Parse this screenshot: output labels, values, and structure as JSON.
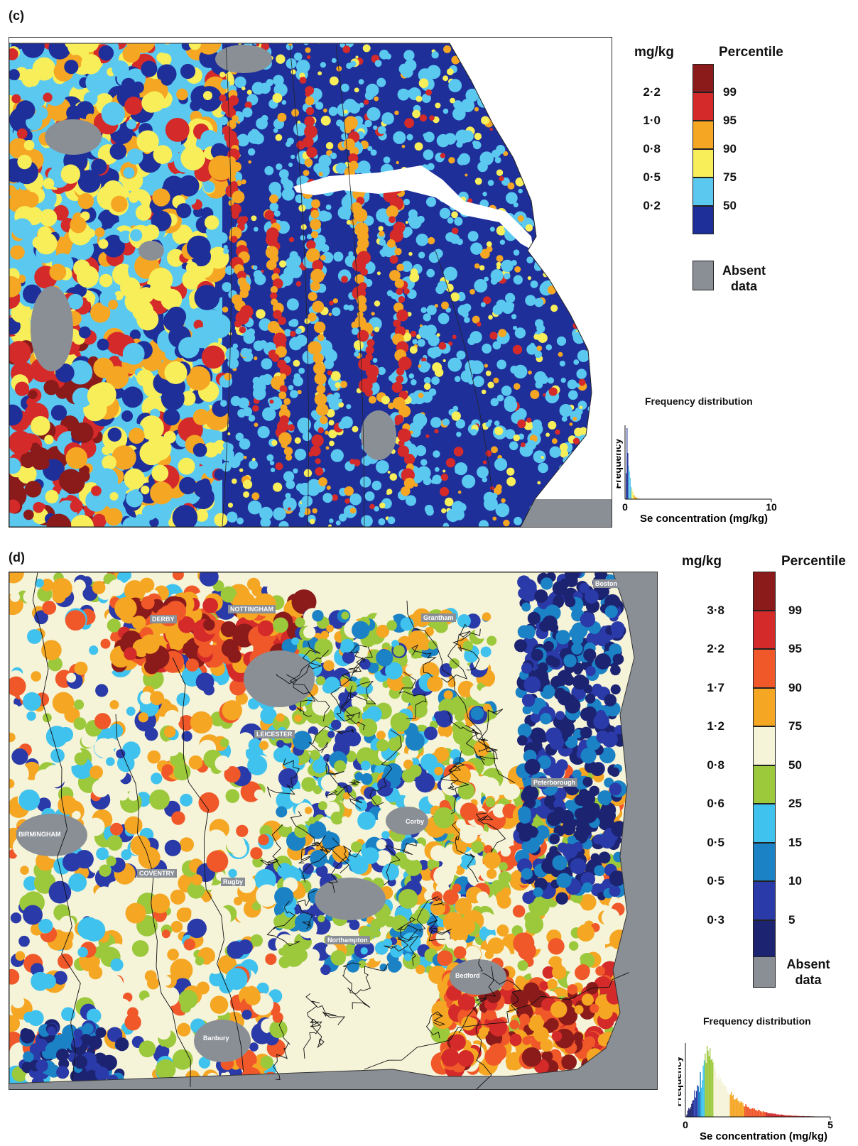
{
  "panel_c": {
    "label": "(c)",
    "legend": {
      "unit_header": "mg/kg",
      "percentile_header": "Percentile",
      "classes": [
        {
          "mgkg": "",
          "percentile": "",
          "color": "#8b1a1a"
        },
        {
          "mgkg": "2·2",
          "percentile": "99",
          "color": "#d42a2a"
        },
        {
          "mgkg": "1·0",
          "percentile": "95",
          "color": "#f5a623"
        },
        {
          "mgkg": "0·8",
          "percentile": "90",
          "color": "#f7ee5a"
        },
        {
          "mgkg": "0·5",
          "percentile": "75",
          "color": "#5bc8f0"
        },
        {
          "mgkg": "0·2",
          "percentile": "50",
          "color": "#1f2f9a"
        }
      ],
      "absent_label_1": "Absent",
      "absent_label_2": "data",
      "absent_color": "#8a8f96"
    },
    "frequency": {
      "title": "Frequency distribution",
      "ylabel": "Frequency",
      "xlabel": "Se concentration (mg/kg)",
      "x_min_label": "0",
      "x_max_label": "10",
      "xlim": [
        0,
        10
      ]
    }
  },
  "panel_d": {
    "label": "(d)",
    "legend": {
      "unit_header": "mg/kg",
      "percentile_header": "Percentile",
      "classes": [
        {
          "mgkg": "",
          "percentile": "",
          "color": "#8b1a1a"
        },
        {
          "mgkg": "3·8",
          "percentile": "99",
          "color": "#d42a2a"
        },
        {
          "mgkg": "2·2",
          "percentile": "95",
          "color": "#f0582a"
        },
        {
          "mgkg": "1·7",
          "percentile": "90",
          "color": "#f5a623"
        },
        {
          "mgkg": "1·2",
          "percentile": "75",
          "color": "#f5f3d8"
        },
        {
          "mgkg": "0·8",
          "percentile": "50",
          "color": "#9cc83c"
        },
        {
          "mgkg": "0·6",
          "percentile": "25",
          "color": "#3fc2ee"
        },
        {
          "mgkg": "0·5",
          "percentile": "15",
          "color": "#1b82c6"
        },
        {
          "mgkg": "0·5",
          "percentile": "10",
          "color": "#2a3aa8"
        },
        {
          "mgkg": "0·3",
          "percentile": "5",
          "color": "#1c2472"
        }
      ],
      "absent_label_1": "Absent",
      "absent_label_2": "data",
      "absent_color": "#8a8f96"
    },
    "cities": {
      "boston": "Boston",
      "nottingham": "NOTTINGHAM",
      "derby": "DERBY",
      "grantham": "Grantham",
      "leicester": "LEICESTER",
      "peterborough": "Peterborough",
      "corby": "Corby",
      "birmingham": "BIRMINGHAM",
      "coventry": "COVENTRY",
      "rugby": "Rugby",
      "northampton": "Northampton",
      "bedford": "Bedford",
      "banbury": "Banbury"
    },
    "frequency": {
      "title": "Frequency distribution",
      "ylabel": "Frequency",
      "xlabel": "Se concentration (mg/kg)",
      "x_min_label": "0",
      "x_max_label": "5",
      "xlim": [
        0,
        5
      ]
    }
  }
}
